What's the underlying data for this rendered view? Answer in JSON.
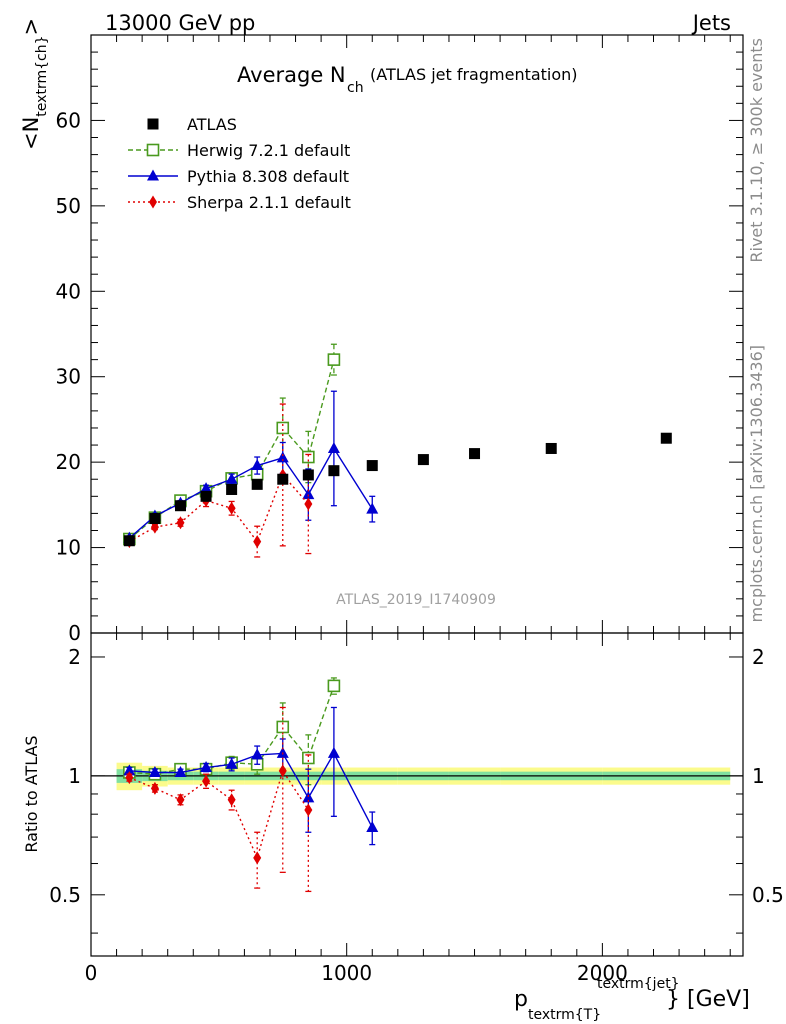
{
  "header": {
    "left": "13000 GeV pp",
    "right": "Jets"
  },
  "side_text": {
    "rivet": "Rivet 3.1.10, ≥ 300k events",
    "mcplots": "mcplots.cern.ch [arXiv:1306.3436]"
  },
  "watermark": "ATLAS_2019_I1740909",
  "top_panel": {
    "title_main": "Average N",
    "title_sub": "ch",
    "title_paren": "(ATLAS jet fragmentation)",
    "ylabel_pre": "<N",
    "ylabel_sub": "textrm{ch}",
    "ylabel_post": ">",
    "yticks": [
      "0",
      "10",
      "20",
      "30",
      "40",
      "50",
      "60"
    ]
  },
  "bottom_panel": {
    "ylabel": "Ratio to ATLAS",
    "yticks": [
      "0.5",
      "1",
      "2"
    ]
  },
  "xaxis": {
    "label_p": "p",
    "label_sub": "textrm{T}",
    "label_sup": "textrm{jet}",
    "label_tail": "} [GeV]",
    "ticks": [
      "0",
      "1000",
      "2000"
    ]
  },
  "legend": {
    "entries": [
      "ATLAS",
      "Herwig 7.2.1 default",
      "Pythia 8.308 default",
      "Sherpa 2.1.1 default"
    ]
  },
  "colors": {
    "atlas": "#000000",
    "herwig": "#4a9a1e",
    "pythia": "#0000d0",
    "sherpa": "#e00000",
    "band_inner": "#7fe0a0",
    "band_outer": "#fbfb8c"
  },
  "chart_data": [
    {
      "type": "scatter",
      "title": "Average N_ch (ATLAS jet fragmentation)",
      "xlabel": "p_T^jet [GeV]",
      "ylabel": "<N_ch>",
      "xlim": [
        0,
        2550
      ],
      "ylim": [
        0,
        70
      ],
      "legend": "top-left",
      "series": [
        {
          "name": "ATLAS",
          "x": [
            150,
            250,
            350,
            450,
            550,
            650,
            750,
            850,
            950,
            1100,
            1300,
            1500,
            1800,
            2250
          ],
          "y": [
            10.8,
            13.4,
            14.9,
            16.0,
            16.8,
            17.4,
            18.0,
            18.5,
            19.0,
            19.6,
            20.3,
            21.0,
            21.6,
            22.8
          ]
        },
        {
          "name": "Herwig 7.2.1 default",
          "x": [
            150,
            250,
            350,
            450,
            550,
            650,
            750,
            850,
            950
          ],
          "y": [
            11.0,
            13.5,
            15.5,
            16.6,
            18.1,
            18.6,
            24.0,
            20.6,
            32.0
          ],
          "err": [
            0.2,
            0.25,
            0.3,
            0.4,
            0.6,
            1.0,
            3.5,
            3.0,
            1.8
          ]
        },
        {
          "name": "Pythia 8.308 default",
          "x": [
            150,
            250,
            350,
            450,
            550,
            650,
            750,
            850,
            950,
            1100
          ],
          "y": [
            11.1,
            13.7,
            15.2,
            16.9,
            18.0,
            19.6,
            20.5,
            16.2,
            21.6,
            14.5
          ],
          "err": [
            0.2,
            0.3,
            0.3,
            0.4,
            0.6,
            1.0,
            1.8,
            3.0,
            6.7,
            1.5
          ]
        },
        {
          "name": "Sherpa 2.1.1 default",
          "x": [
            150,
            250,
            350,
            450,
            550,
            650,
            750,
            850
          ],
          "y": [
            10.7,
            12.4,
            12.9,
            15.5,
            14.6,
            10.7,
            18.5,
            15.1
          ],
          "err": [
            0.2,
            0.3,
            0.4,
            0.7,
            0.8,
            1.8,
            8.3,
            5.8
          ]
        }
      ]
    },
    {
      "type": "scatter",
      "ylabel": "Ratio to ATLAS",
      "xlim": [
        0,
        2550
      ],
      "ylim": [
        0.35,
        2.3
      ],
      "yscale": "log",
      "series": [
        {
          "name": "Herwig 7.2.1 default",
          "x": [
            150,
            250,
            350,
            450,
            550,
            650,
            750,
            850,
            950
          ],
          "y": [
            1.02,
            1.01,
            1.04,
            1.04,
            1.08,
            1.07,
            1.33,
            1.11,
            1.69
          ],
          "err": [
            0.02,
            0.02,
            0.02,
            0.025,
            0.04,
            0.06,
            0.2,
            0.16,
            0.08
          ]
        },
        {
          "name": "Pythia 8.308 default",
          "x": [
            150,
            250,
            350,
            450,
            550,
            650,
            750,
            850,
            950,
            1100
          ],
          "y": [
            1.03,
            1.02,
            1.02,
            1.05,
            1.07,
            1.13,
            1.14,
            0.88,
            1.14,
            0.74
          ],
          "err": [
            0.02,
            0.02,
            0.02,
            0.025,
            0.04,
            0.06,
            0.1,
            0.16,
            0.35,
            0.07
          ]
        },
        {
          "name": "Sherpa 2.1.1 default",
          "x": [
            150,
            250,
            350,
            450,
            550,
            650,
            750,
            850
          ],
          "y": [
            0.99,
            0.93,
            0.87,
            0.97,
            0.87,
            0.62,
            1.03,
            0.82
          ],
          "err": [
            0.02,
            0.02,
            0.025,
            0.04,
            0.05,
            0.1,
            0.46,
            0.31
          ]
        }
      ],
      "band": {
        "x": [
          100,
          200,
          300,
          400,
          500,
          600,
          700,
          800,
          900,
          1000,
          1200,
          1400,
          1600,
          2000,
          2500
        ],
        "inner": [
          0.04,
          0.03,
          0.025,
          0.025,
          0.025,
          0.025,
          0.025,
          0.025,
          0.025,
          0.025,
          0.025,
          0.025,
          0.025,
          0.025
        ],
        "outer": [
          0.08,
          0.06,
          0.05,
          0.05,
          0.05,
          0.05,
          0.05,
          0.05,
          0.05,
          0.05,
          0.05,
          0.05,
          0.05,
          0.05
        ]
      }
    }
  ]
}
